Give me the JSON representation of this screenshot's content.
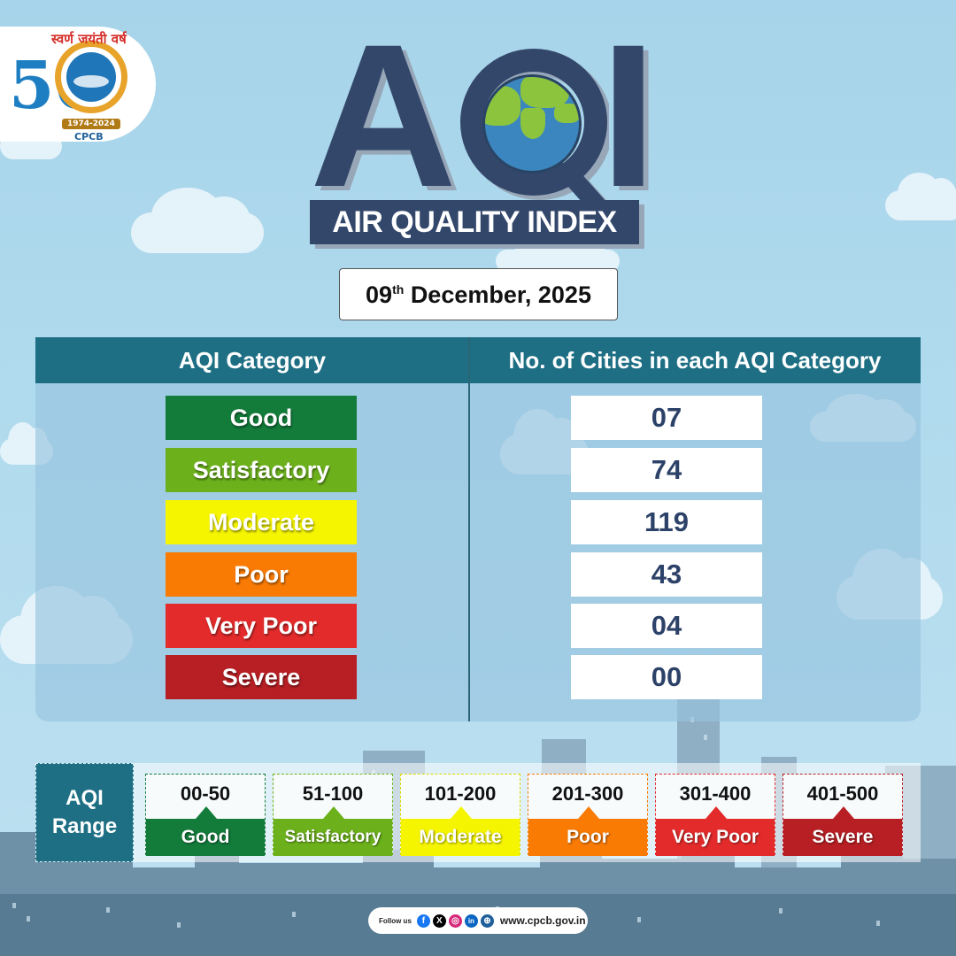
{
  "logo": {
    "hindi_text": "स्वर्ण जयंती वर्ष",
    "number": "50",
    "years": "1974-2024",
    "org": "CPCB"
  },
  "title": {
    "big": "AQI",
    "banner": "AIR QUALITY INDEX"
  },
  "date": {
    "day": "09",
    "suffix": "th",
    "rest": "December, 2025"
  },
  "table": {
    "header_left": "AQI Category",
    "header_right": "No. of Cities in each AQI Category",
    "rows": [
      {
        "category": "Good",
        "count": "07",
        "color": "#137c3b"
      },
      {
        "category": "Satisfactory",
        "count": "74",
        "color": "#6cb11c"
      },
      {
        "category": "Moderate",
        "count": "119",
        "color": "#f5f500"
      },
      {
        "category": "Poor",
        "count": "43",
        "color": "#f97b04"
      },
      {
        "category": "Very Poor",
        "count": "04",
        "color": "#e42b2b"
      },
      {
        "category": "Severe",
        "count": "00",
        "color": "#b81f24"
      }
    ]
  },
  "range": {
    "label_line1": "AQI",
    "label_line2": "Range",
    "items": [
      {
        "range": "00-50",
        "name": "Good",
        "color": "#137c3b"
      },
      {
        "range": "51-100",
        "name": "Satisfactory",
        "color": "#6cb11c"
      },
      {
        "range": "101-200",
        "name": "Moderate",
        "color": "#f5f500"
      },
      {
        "range": "201-300",
        "name": "Poor",
        "color": "#f97b04"
      },
      {
        "range": "301-400",
        "name": "Very Poor",
        "color": "#e42b2b"
      },
      {
        "range": "401-500",
        "name": "Severe",
        "color": "#b81f24"
      }
    ]
  },
  "footer": {
    "follow": "Follow us",
    "icons": [
      "facebook-icon",
      "x-icon",
      "instagram-icon",
      "linkedin-icon",
      "globe-icon"
    ],
    "website": "www.cpcb.gov.in"
  }
}
